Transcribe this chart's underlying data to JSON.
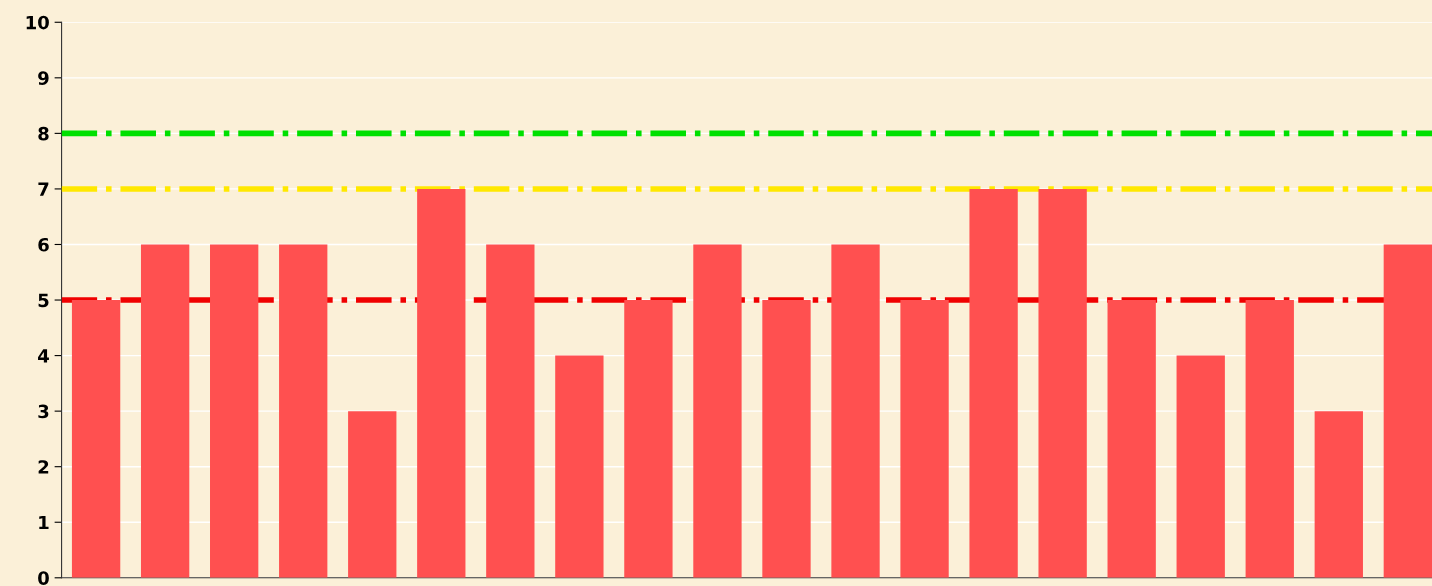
{
  "chart_data": {
    "type": "bar",
    "categories": [
      null,
      null,
      null,
      null,
      null,
      null,
      null,
      null,
      null,
      null,
      null,
      null,
      null,
      null,
      null,
      null,
      null,
      null,
      null,
      null
    ],
    "values": [
      5,
      6,
      6,
      6,
      3,
      7,
      6,
      4,
      5,
      6,
      5,
      6,
      5,
      7,
      7,
      5,
      4,
      5,
      3,
      6
    ],
    "color": "#ff5050",
    "ylim": [
      0,
      10
    ],
    "yticks": [
      0,
      1,
      2,
      3,
      4,
      5,
      6,
      7,
      8,
      9,
      10
    ],
    "grid": "y",
    "tick_labels": "y",
    "ref_lines": [
      {
        "axis": "y",
        "value": 8,
        "color": "#00e000",
        "line_style": "dashdot"
      },
      {
        "axis": "y",
        "value": 7,
        "color": "#ffe800",
        "line_style": "dashdot"
      },
      {
        "axis": "y",
        "value": 5,
        "color": "#f00000",
        "line_style": "dashdot"
      }
    ]
  }
}
